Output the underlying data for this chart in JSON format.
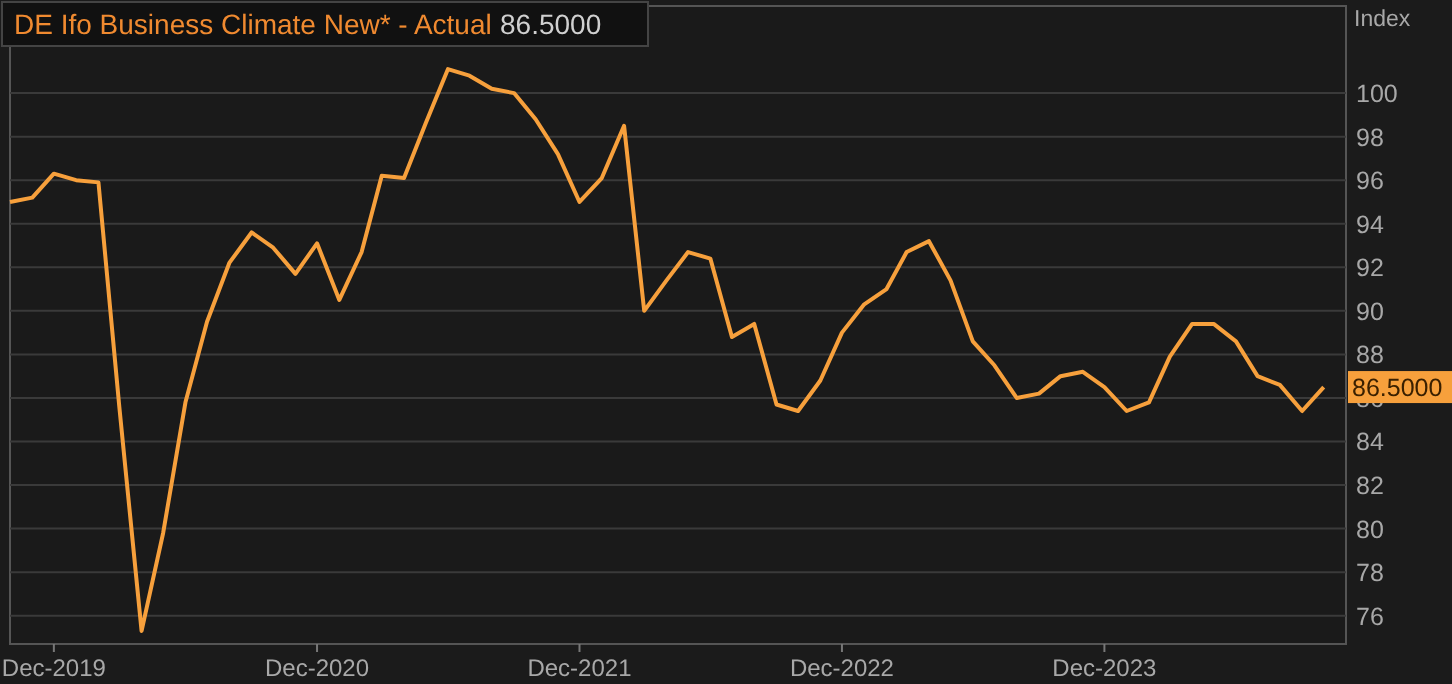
{
  "chart_data": {
    "type": "line",
    "ylabel": "Index",
    "legend": "top left",
    "grid": "y",
    "xlim": [
      "2019-10",
      "2024-11"
    ],
    "ylim": [
      74.7,
      104
    ],
    "xticks": [
      {
        "value": "2019-12",
        "label": "Dec-2019"
      },
      {
        "value": "2020-12",
        "label": "Dec-2020"
      },
      {
        "value": "2021-12",
        "label": "Dec-2021"
      },
      {
        "value": "2022-12",
        "label": "Dec-2022"
      },
      {
        "value": "2023-12",
        "label": "Dec-2023"
      }
    ],
    "yticks": [
      76,
      78,
      80,
      82,
      84,
      86,
      88,
      90,
      92,
      94,
      96,
      98,
      100
    ],
    "x": [
      "2019-10",
      "2019-11",
      "2019-12",
      "2020-01",
      "2020-02",
      "2020-03",
      "2020-04",
      "2020-05",
      "2020-06",
      "2020-07",
      "2020-08",
      "2020-09",
      "2020-10",
      "2020-11",
      "2020-12",
      "2021-01",
      "2021-02",
      "2021-03",
      "2021-04",
      "2021-05",
      "2021-06",
      "2021-07",
      "2021-08",
      "2021-09",
      "2021-10",
      "2021-11",
      "2021-12",
      "2022-01",
      "2022-02",
      "2022-03",
      "2022-04",
      "2022-05",
      "2022-06",
      "2022-07",
      "2022-08",
      "2022-09",
      "2022-10",
      "2022-11",
      "2022-12",
      "2023-01",
      "2023-02",
      "2023-03",
      "2023-04",
      "2023-05",
      "2023-06",
      "2023-07",
      "2023-08",
      "2023-09",
      "2023-10",
      "2023-11",
      "2023-12",
      "2024-01",
      "2024-02",
      "2024-03",
      "2024-04",
      "2024-05",
      "2024-06",
      "2024-07",
      "2024-08",
      "2024-09",
      "2024-10"
    ],
    "series": [
      {
        "name": "DE Ifo Business Climate New* - Actual",
        "color": "#f7a03c",
        "values": [
          95.0,
          95.2,
          96.3,
          96.0,
          95.9,
          85.6,
          75.3,
          79.8,
          85.8,
          89.5,
          92.2,
          93.6,
          92.9,
          91.7,
          93.1,
          90.5,
          92.7,
          96.2,
          96.1,
          98.6,
          101.1,
          100.8,
          100.2,
          100.0,
          98.8,
          97.2,
          95.0,
          96.1,
          98.5,
          90.0,
          91.4,
          92.7,
          92.4,
          88.8,
          89.4,
          85.7,
          85.4,
          86.8,
          89.0,
          90.3,
          91.0,
          92.7,
          93.2,
          91.4,
          88.6,
          87.5,
          86.0,
          86.2,
          87.0,
          87.2,
          86.5,
          85.4,
          85.8,
          87.9,
          89.4,
          89.4,
          88.6,
          87.0,
          86.6,
          85.4,
          86.5
        ],
        "value_labels": [
          null,
          null,
          null,
          null,
          null,
          null,
          null,
          null,
          null,
          null,
          null,
          null,
          null,
          null,
          null,
          null,
          null,
          null,
          null,
          null,
          null,
          null,
          null,
          null,
          null,
          null,
          null,
          null,
          null,
          null,
          null,
          null,
          null,
          null,
          null,
          null,
          null,
          null,
          null,
          null,
          null,
          null,
          null,
          null,
          null,
          null,
          null,
          null,
          null,
          null,
          null,
          null,
          null,
          null,
          null,
          null,
          null,
          null,
          null,
          null,
          "86.5000"
        ]
      }
    ]
  }
}
